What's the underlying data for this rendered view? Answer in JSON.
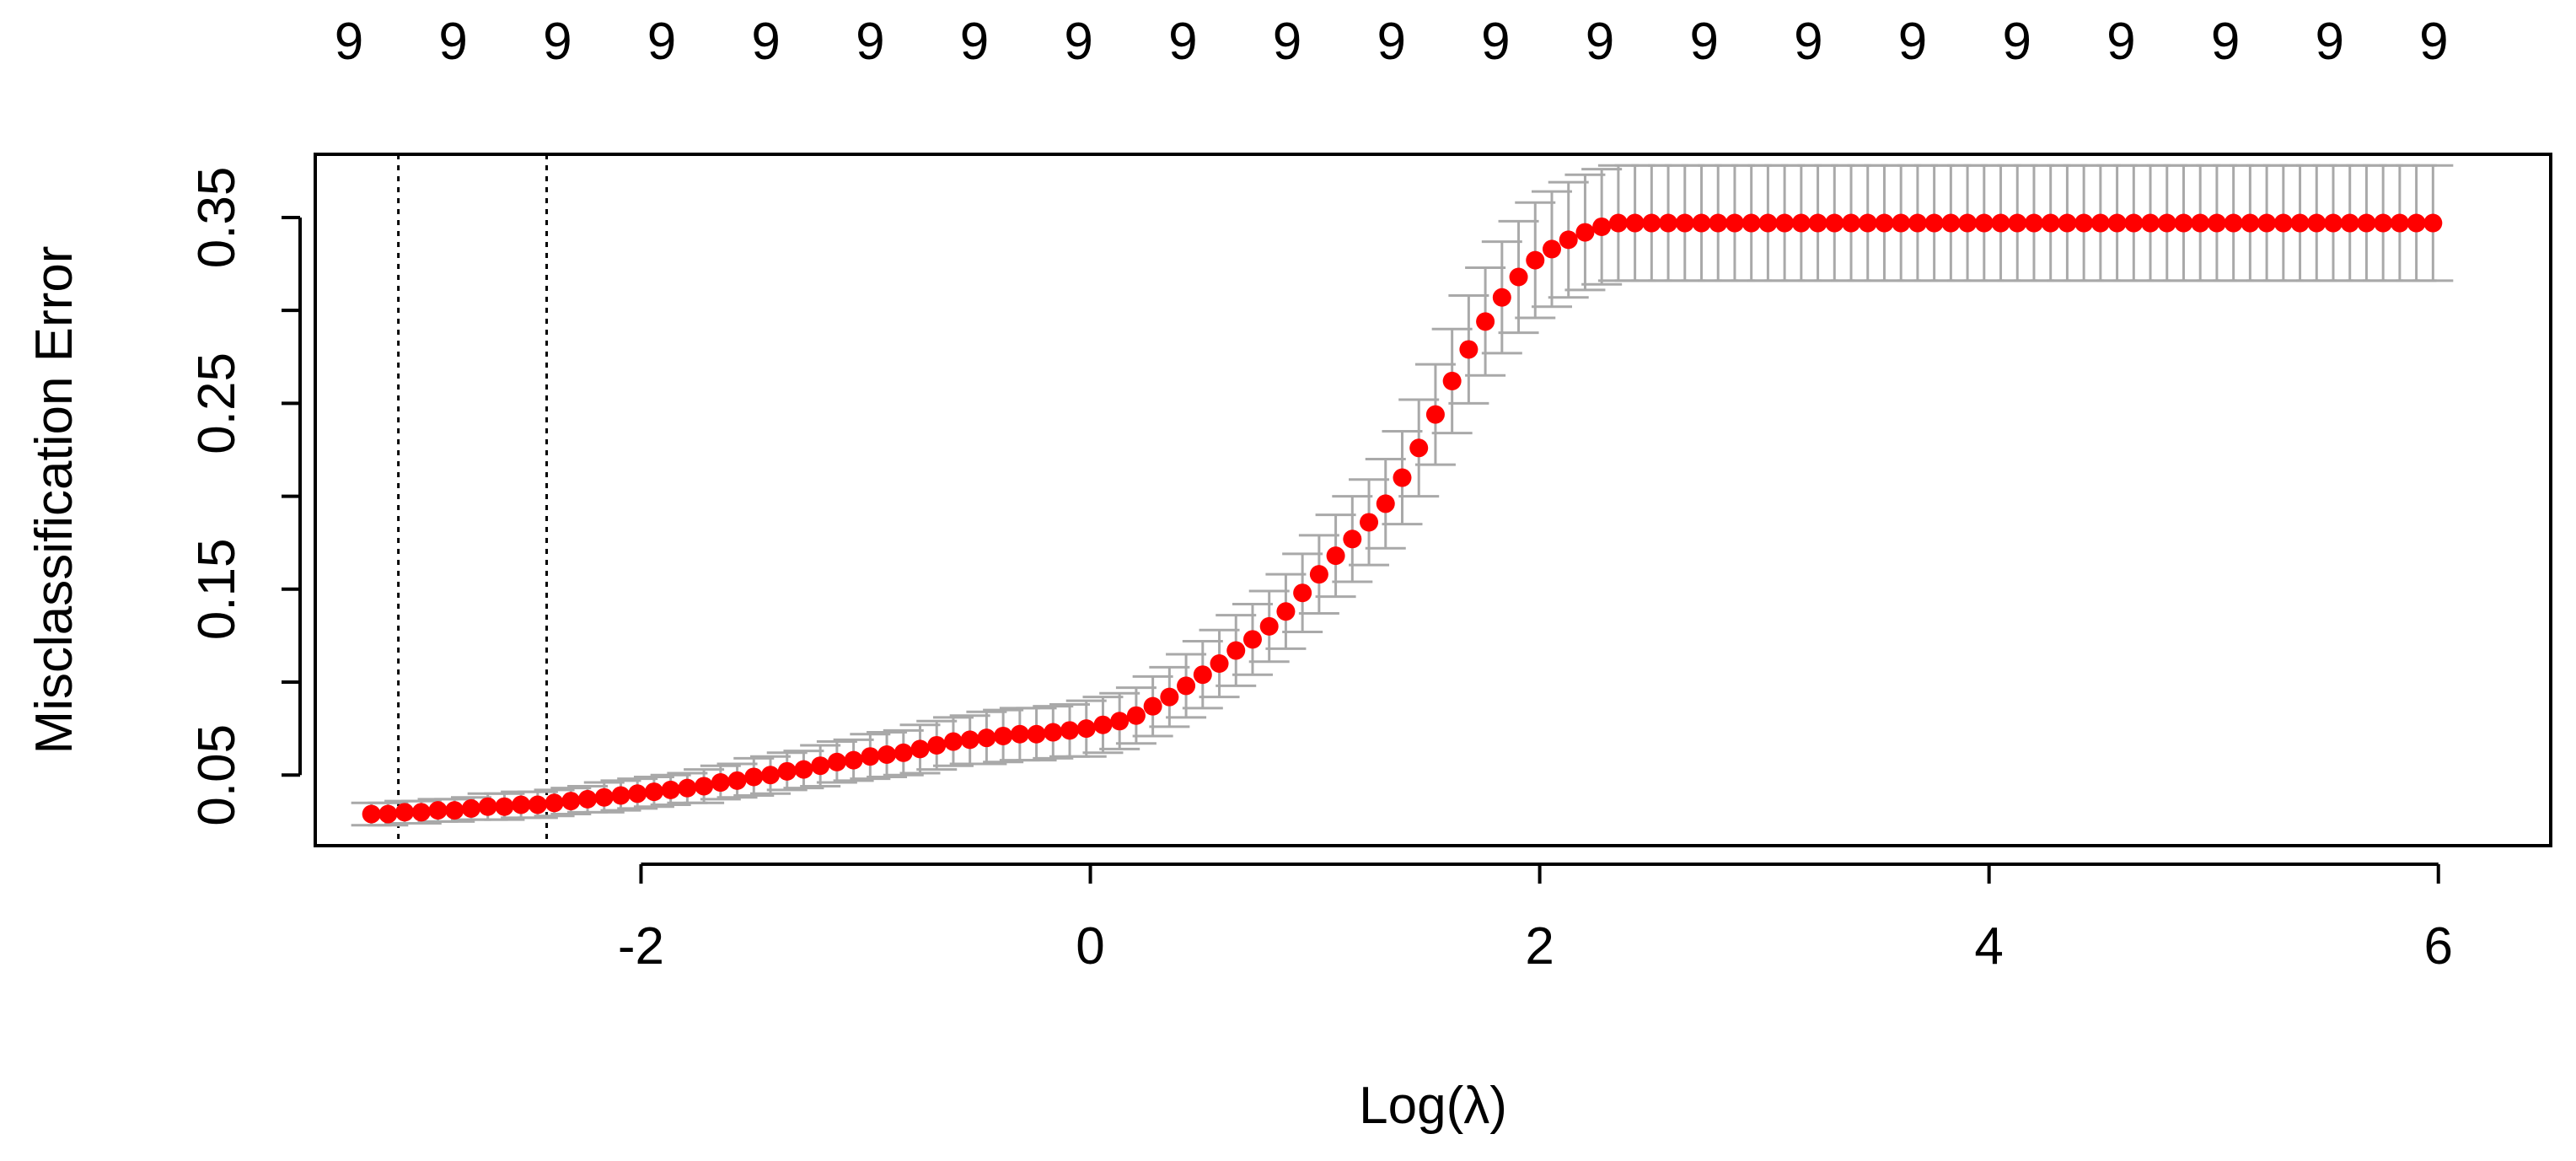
{
  "chart_data": {
    "type": "scatter",
    "title": "",
    "xlabel": "Log(λ)",
    "ylabel": "Misclassification Error",
    "xlim": [
      -3.45,
      6.5
    ],
    "ylim": [
      0.012,
      0.384
    ],
    "xticks": [
      -2,
      0,
      2,
      4,
      6
    ],
    "xtick_labels": [
      "-2",
      "0",
      "2",
      "4",
      "6"
    ],
    "yticks": [
      0.05,
      0.1,
      0.15,
      0.2,
      0.25,
      0.3,
      0.35
    ],
    "ytick_labels": [
      "0.05",
      "",
      "0.15",
      "",
      "0.25",
      "",
      "0.35"
    ],
    "top_ticks": [
      -3.3,
      -2.836,
      -2.372,
      -1.908,
      -1.444,
      -0.98,
      -0.516,
      -0.052,
      0.412,
      0.876,
      1.34,
      1.804,
      2.268,
      2.732,
      3.196,
      3.66,
      4.124,
      4.588,
      5.052,
      5.516,
      5.98
    ],
    "top_labels": [
      "9",
      "9",
      "9",
      "9",
      "9",
      "9",
      "9",
      "9",
      "9",
      "9",
      "9",
      "9",
      "9",
      "9",
      "9",
      "9",
      "9",
      "9",
      "9",
      "9",
      "9"
    ],
    "vlines": [
      -3.08,
      -2.42
    ],
    "grid": false,
    "legend": "none",
    "colors": {
      "point": "#ff0000",
      "errorbar": "#a9a9a9",
      "axis": "#000000",
      "vline": "#000000"
    },
    "x": [
      -3.2,
      -3.126,
      -3.052,
      -2.978,
      -2.904,
      -2.83,
      -2.756,
      -2.682,
      -2.608,
      -2.534,
      -2.46,
      -2.386,
      -2.312,
      -2.238,
      -2.164,
      -2.09,
      -2.016,
      -1.942,
      -1.868,
      -1.794,
      -1.72,
      -1.646,
      -1.572,
      -1.498,
      -1.424,
      -1.35,
      -1.276,
      -1.202,
      -1.128,
      -1.054,
      -0.98,
      -0.906,
      -0.832,
      -0.758,
      -0.684,
      -0.61,
      -0.536,
      -0.462,
      -0.388,
      -0.314,
      -0.24,
      -0.166,
      -0.092,
      -0.018,
      0.056,
      0.13,
      0.204,
      0.278,
      0.352,
      0.426,
      0.5,
      0.574,
      0.648,
      0.722,
      0.796,
      0.87,
      0.944,
      1.018,
      1.092,
      1.166,
      1.24,
      1.314,
      1.388,
      1.462,
      1.536,
      1.61,
      1.684,
      1.758,
      1.832,
      1.906,
      1.98,
      2.054,
      2.128,
      2.202,
      2.276,
      2.35,
      2.424,
      2.498,
      2.572,
      2.646,
      2.72,
      2.794,
      2.868,
      2.942,
      3.016,
      3.09,
      3.164,
      3.238,
      3.312,
      3.386,
      3.46,
      3.534,
      3.608,
      3.682,
      3.756,
      3.83,
      3.904,
      3.978,
      4.052,
      4.126,
      4.2,
      4.274,
      4.348,
      4.422,
      4.496,
      4.57,
      4.644,
      4.718,
      4.792,
      4.866,
      4.94,
      5.014,
      5.088,
      5.162,
      5.236,
      5.31,
      5.384,
      5.458,
      5.532,
      5.606,
      5.68,
      5.754,
      5.828,
      5.902,
      5.976
    ],
    "y": [
      0.029,
      0.029,
      0.03,
      0.03,
      0.031,
      0.031,
      0.032,
      0.033,
      0.033,
      0.034,
      0.034,
      0.035,
      0.036,
      0.037,
      0.038,
      0.039,
      0.04,
      0.041,
      0.042,
      0.043,
      0.044,
      0.046,
      0.047,
      0.049,
      0.05,
      0.052,
      0.053,
      0.055,
      0.057,
      0.058,
      0.06,
      0.061,
      0.062,
      0.064,
      0.066,
      0.068,
      0.069,
      0.07,
      0.071,
      0.072,
      0.072,
      0.073,
      0.074,
      0.075,
      0.077,
      0.079,
      0.082,
      0.087,
      0.092,
      0.098,
      0.104,
      0.11,
      0.117,
      0.123,
      0.13,
      0.138,
      0.148,
      0.158,
      0.168,
      0.177,
      0.186,
      0.196,
      0.21,
      0.226,
      0.244,
      0.262,
      0.279,
      0.294,
      0.307,
      0.318,
      0.327,
      0.333,
      0.338,
      0.342,
      0.345,
      0.347,
      0.347,
      0.347,
      0.347,
      0.347,
      0.347,
      0.347,
      0.347,
      0.347,
      0.347,
      0.347,
      0.347,
      0.347,
      0.347,
      0.347,
      0.347,
      0.347,
      0.347,
      0.347,
      0.347,
      0.347,
      0.347,
      0.347,
      0.347,
      0.347,
      0.347,
      0.347,
      0.347,
      0.347,
      0.347,
      0.347,
      0.347,
      0.347,
      0.347,
      0.347,
      0.347,
      0.347,
      0.347,
      0.347,
      0.347,
      0.347,
      0.347,
      0.347,
      0.347,
      0.347,
      0.347,
      0.347,
      0.347,
      0.347,
      0.347
    ],
    "y_lower": [
      0.023,
      0.023,
      0.024,
      0.024,
      0.025,
      0.025,
      0.026,
      0.026,
      0.026,
      0.027,
      0.027,
      0.028,
      0.029,
      0.03,
      0.03,
      0.031,
      0.032,
      0.033,
      0.034,
      0.035,
      0.035,
      0.037,
      0.038,
      0.039,
      0.04,
      0.042,
      0.043,
      0.044,
      0.046,
      0.047,
      0.048,
      0.049,
      0.05,
      0.051,
      0.053,
      0.055,
      0.056,
      0.056,
      0.057,
      0.058,
      0.058,
      0.059,
      0.06,
      0.06,
      0.062,
      0.064,
      0.067,
      0.071,
      0.076,
      0.081,
      0.086,
      0.092,
      0.098,
      0.104,
      0.111,
      0.118,
      0.127,
      0.137,
      0.146,
      0.154,
      0.163,
      0.172,
      0.185,
      0.2,
      0.217,
      0.234,
      0.25,
      0.265,
      0.277,
      0.288,
      0.296,
      0.302,
      0.307,
      0.311,
      0.314,
      0.316,
      0.316,
      0.316,
      0.316,
      0.316,
      0.316,
      0.316,
      0.316,
      0.316,
      0.316,
      0.316,
      0.316,
      0.316,
      0.316,
      0.316,
      0.316,
      0.316,
      0.316,
      0.316,
      0.316,
      0.316,
      0.316,
      0.316,
      0.316,
      0.316,
      0.316,
      0.316,
      0.316,
      0.316,
      0.316,
      0.316,
      0.316,
      0.316,
      0.316,
      0.316,
      0.316,
      0.316,
      0.316,
      0.316,
      0.316,
      0.316,
      0.316,
      0.316,
      0.316,
      0.316,
      0.316,
      0.316,
      0.316,
      0.316,
      0.316
    ],
    "y_upper": [
      0.035,
      0.035,
      0.036,
      0.036,
      0.037,
      0.037,
      0.038,
      0.04,
      0.04,
      0.041,
      0.041,
      0.042,
      0.043,
      0.044,
      0.046,
      0.047,
      0.048,
      0.049,
      0.05,
      0.051,
      0.053,
      0.055,
      0.056,
      0.059,
      0.06,
      0.062,
      0.063,
      0.066,
      0.068,
      0.069,
      0.072,
      0.073,
      0.074,
      0.077,
      0.079,
      0.081,
      0.082,
      0.084,
      0.085,
      0.086,
      0.086,
      0.087,
      0.088,
      0.09,
      0.092,
      0.094,
      0.097,
      0.103,
      0.108,
      0.115,
      0.122,
      0.128,
      0.136,
      0.142,
      0.149,
      0.158,
      0.169,
      0.179,
      0.19,
      0.2,
      0.209,
      0.22,
      0.235,
      0.252,
      0.271,
      0.29,
      0.308,
      0.323,
      0.337,
      0.348,
      0.358,
      0.364,
      0.369,
      0.373,
      0.376,
      0.378,
      0.378,
      0.378,
      0.378,
      0.378,
      0.378,
      0.378,
      0.378,
      0.378,
      0.378,
      0.378,
      0.378,
      0.378,
      0.378,
      0.378,
      0.378,
      0.378,
      0.378,
      0.378,
      0.378,
      0.378,
      0.378,
      0.378,
      0.378,
      0.378,
      0.378,
      0.378,
      0.378,
      0.378,
      0.378,
      0.378,
      0.378,
      0.378,
      0.378,
      0.378,
      0.378,
      0.378,
      0.378,
      0.378,
      0.378,
      0.378,
      0.378,
      0.378,
      0.378,
      0.378,
      0.378,
      0.378,
      0.378,
      0.378,
      0.378
    ]
  }
}
